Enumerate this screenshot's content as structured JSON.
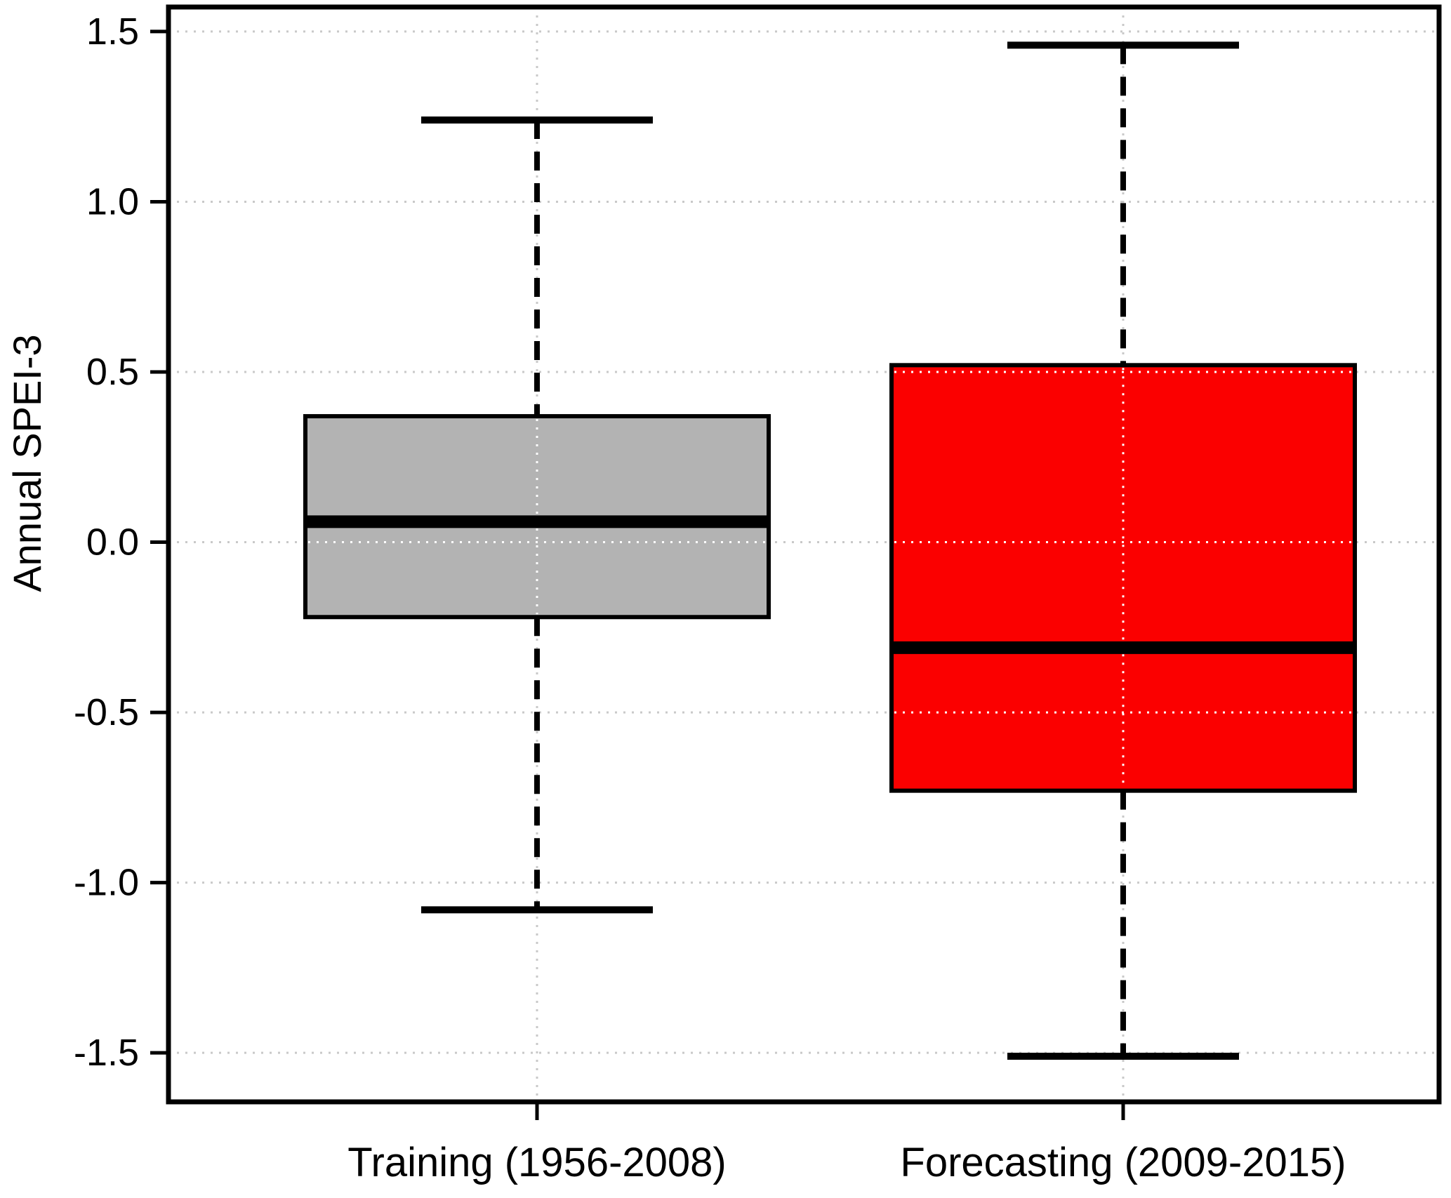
{
  "chart_data": {
    "type": "boxplot",
    "title": "",
    "xlabel": "",
    "ylabel": "Annual SPEI-3",
    "ylim": [
      -1.64,
      1.57
    ],
    "yticks": [
      -1.5,
      -1.0,
      -0.5,
      0.0,
      0.5,
      1.0,
      1.5
    ],
    "ytick_labels": [
      "-1.5",
      "-1.0",
      "-0.5",
      "0.0",
      "0.5",
      "1.0",
      "1.5"
    ],
    "grid": true,
    "legend": "none",
    "background_color": "#ffffff",
    "grid_color": "#c9c9c9",
    "grid_overlay_color": "#ffffff",
    "frame_color": "#000000",
    "categories": [
      "Training (1956-2008)",
      "Forecasting (2009-2015)"
    ],
    "series": [
      {
        "name": "Training (1956-2008)",
        "slug": "training",
        "color": "#b3b3b3",
        "lower_whisker": -1.08,
        "q1": -0.22,
        "median": 0.06,
        "q3": 0.37,
        "upper_whisker": 1.24
      },
      {
        "name": "Forecasting (2009-2015)",
        "slug": "forecasting",
        "color": "#fb0000",
        "lower_whisker": -1.51,
        "q1": -0.73,
        "median": -0.31,
        "q3": 0.52,
        "upper_whisker": 1.46
      }
    ]
  }
}
